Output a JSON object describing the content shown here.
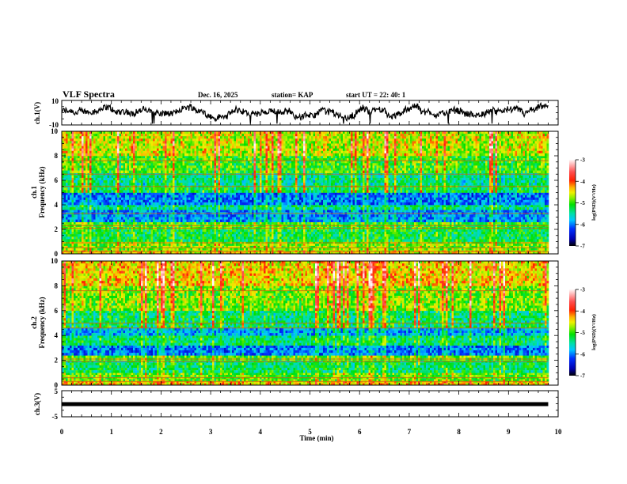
{
  "header": {
    "title": "VLF Spectra",
    "date": "Dec. 16, 2025",
    "station": "station= KAP",
    "start": "start  UT =   22: 40: 1"
  },
  "chart_data": [
    {
      "type": "line",
      "name": "ch1-waveform",
      "ylabel": "ch.1(V)",
      "ylim": [
        -10,
        10
      ],
      "yticks": [
        "10",
        "-10"
      ],
      "xlim": [
        0,
        10
      ],
      "x_end": 9.8,
      "color": "#000000",
      "description_values": {
        "baseline": 0,
        "amplitude_typical": 4
      }
    },
    {
      "type": "heatmap",
      "name": "ch1-spectrogram",
      "ylabel_line1": "ch.1",
      "ylabel_line2": "Frequency  (kHz)",
      "ylim": [
        0,
        10
      ],
      "yticks": [
        "0",
        "2",
        "4",
        "6",
        "8",
        "10"
      ],
      "xlim": [
        0,
        10
      ],
      "x_end": 9.8,
      "colorbar": {
        "label": "log(PSD)(V²/Hz)",
        "range": [
          -7,
          -3
        ],
        "ticks": [
          "-3",
          "-4",
          "-5",
          "-6",
          "-7"
        ]
      },
      "bands": [
        {
          "f0": 0.0,
          "f1": 0.3,
          "level": -4.6
        },
        {
          "f0": 0.3,
          "f1": 1.0,
          "level": -4.9
        },
        {
          "f0": 1.0,
          "f1": 2.0,
          "level": -5.3
        },
        {
          "f0": 2.0,
          "f1": 2.6,
          "level": -5.1
        },
        {
          "f0": 2.6,
          "f1": 3.6,
          "level": -6.0
        },
        {
          "f0": 3.6,
          "f1": 4.0,
          "level": -5.5
        },
        {
          "f0": 4.0,
          "f1": 5.0,
          "level": -6.1
        },
        {
          "f0": 5.0,
          "f1": 5.6,
          "level": -5.4
        },
        {
          "f0": 5.6,
          "f1": 6.6,
          "level": -5.6
        },
        {
          "f0": 6.6,
          "f1": 8.0,
          "level": -5.2
        },
        {
          "f0": 8.0,
          "f1": 10.0,
          "level": -4.8
        }
      ],
      "lines_khz": [
        0.2,
        0.5,
        0.9,
        2.1,
        2.3,
        3.3,
        5.5,
        6.5,
        7.6
      ]
    },
    {
      "type": "heatmap",
      "name": "ch2-spectrogram",
      "ylabel_line1": "ch.2",
      "ylabel_line2": "Frequency  (kHz)",
      "ylim": [
        0,
        10
      ],
      "yticks": [
        "0",
        "2",
        "4",
        "6",
        "8",
        "10"
      ],
      "xlim": [
        0,
        10
      ],
      "x_end": 9.8,
      "colorbar": {
        "label": "log(PSD)(V²/Hz)",
        "range": [
          -7,
          -3
        ],
        "ticks": [
          "-3",
          "-4",
          "-5",
          "-6",
          "-7"
        ]
      },
      "bands": [
        {
          "f0": 0.0,
          "f1": 0.3,
          "level": -4.5
        },
        {
          "f0": 0.3,
          "f1": 1.0,
          "level": -5.0
        },
        {
          "f0": 1.0,
          "f1": 2.0,
          "level": -5.4
        },
        {
          "f0": 2.0,
          "f1": 2.4,
          "level": -5.0
        },
        {
          "f0": 2.4,
          "f1": 3.2,
          "level": -6.1
        },
        {
          "f0": 3.2,
          "f1": 4.0,
          "level": -5.4
        },
        {
          "f0": 4.0,
          "f1": 4.6,
          "level": -5.9
        },
        {
          "f0": 4.6,
          "f1": 6.0,
          "level": -5.5
        },
        {
          "f0": 6.0,
          "f1": 8.0,
          "level": -5.0
        },
        {
          "f0": 8.0,
          "f1": 10.0,
          "level": -4.6
        }
      ],
      "lines_khz": [
        0.3,
        0.6,
        1.9,
        2.1,
        4.6,
        5.0,
        7.6
      ]
    },
    {
      "type": "line",
      "name": "ch3-waveform",
      "ylabel": "ch.3(V)",
      "ylim": [
        -5,
        5
      ],
      "yticks": [
        "5",
        "-5"
      ],
      "xlim": [
        0,
        10
      ],
      "x_end": 9.8,
      "value": 0,
      "color": "#000000",
      "xlabel": "Time  (min)",
      "xticks": [
        "0",
        "1",
        "2",
        "3",
        "4",
        "5",
        "6",
        "7",
        "8",
        "9",
        "10"
      ]
    }
  ]
}
